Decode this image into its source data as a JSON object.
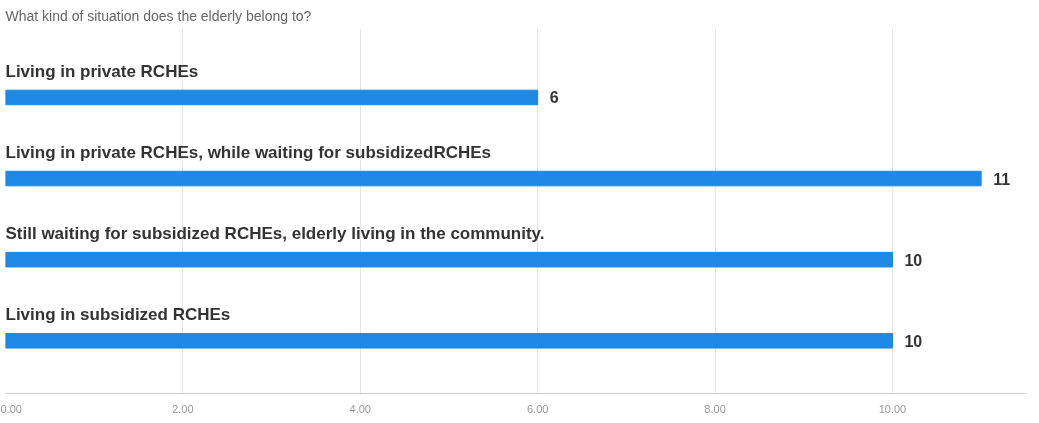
{
  "chart_data": {
    "type": "bar",
    "orientation": "horizontal",
    "title": "What kind of situation does the elderly belong to?",
    "categories": [
      "Living in private RCHEs",
      "Living in private RCHEs, while waiting for subsidizedRCHEs",
      "Still waiting for subsidized RCHEs, elderly living in the community.",
      "Living in subsidized RCHEs"
    ],
    "values": [
      6,
      11,
      10,
      10
    ],
    "color": "#1e88e5",
    "data_labels": true,
    "xlim": [
      0,
      11.5
    ],
    "xticks": [
      {
        "value": 0,
        "label": "0.00"
      },
      {
        "value": 2,
        "label": "2.00"
      },
      {
        "value": 4,
        "label": "4.00"
      },
      {
        "value": 6,
        "label": "6.00"
      },
      {
        "value": 8,
        "label": "8.00"
      },
      {
        "value": 10,
        "label": "10.00"
      }
    ],
    "grid": "x",
    "tick_labels": "x"
  }
}
